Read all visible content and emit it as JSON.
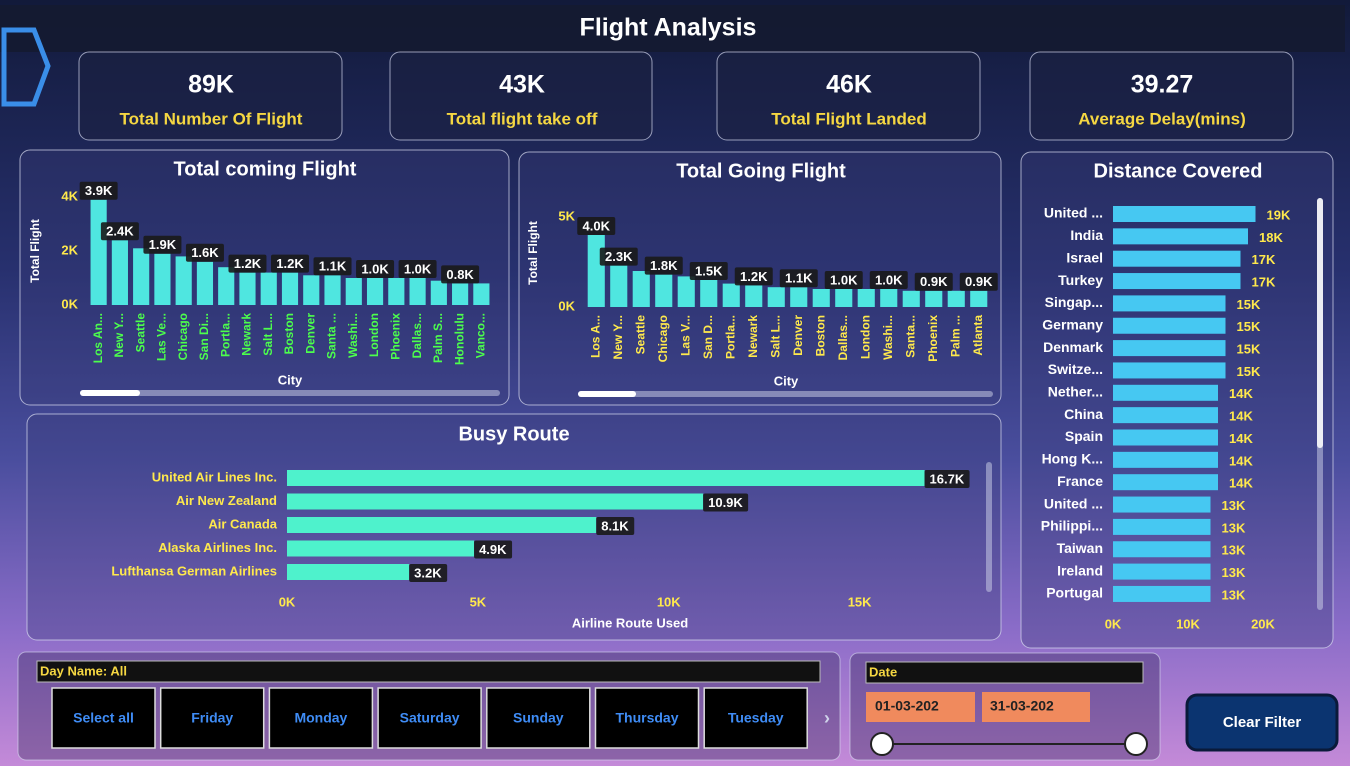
{
  "title": "Flight Analysis",
  "kpis": [
    {
      "value": "89K",
      "label": "Total Number Of Flight"
    },
    {
      "value": "43K",
      "label": "Total flight take off"
    },
    {
      "value": "46K",
      "label": "Total Flight Landed"
    },
    {
      "value": "39.27",
      "label": "Average Delay(mins)"
    }
  ],
  "chart_data": [
    {
      "type": "bar",
      "title": "Total coming Flight",
      "x_label": "City",
      "y_label": "Total Flight",
      "categories": [
        "Los An...",
        "New Y...",
        "Seattle",
        "Las Ve...",
        "Chicago",
        "San Di...",
        "Portla...",
        "Newark",
        "Salt L...",
        "Boston",
        "Denver",
        "Santa ...",
        "Washi...",
        "London",
        "Phoenix",
        "Dallas...",
        "Palm S...",
        "Honolulu",
        "Vanco..."
      ],
      "values": [
        3900,
        2400,
        2100,
        1900,
        1800,
        1600,
        1400,
        1200,
        1200,
        1200,
        1100,
        1100,
        1000,
        1000,
        1000,
        1000,
        900,
        800,
        800
      ],
      "value_labels": [
        "3.9K",
        "2.4K",
        null,
        "1.9K",
        null,
        "1.6K",
        null,
        "1.2K",
        null,
        "1.2K",
        null,
        "1.1K",
        null,
        "1.0K",
        null,
        "1.0K",
        null,
        "0.8K",
        null
      ],
      "color": "#4fe6e0",
      "category_color": "#4cff4c",
      "ylim": [
        0,
        4000
      ],
      "yticks": [
        {
          "value": 0,
          "label": "0K"
        },
        {
          "value": 2000,
          "label": "2K"
        },
        {
          "value": 4000,
          "label": "4K"
        }
      ]
    },
    {
      "type": "bar",
      "title": "Total Going Flight",
      "x_label": "City",
      "y_label": "Total Flight",
      "categories": [
        "Los A...",
        "New Y...",
        "Seattle",
        "Chicago",
        "Las V...",
        "San D...",
        "Portla...",
        "Newark",
        "Salt L...",
        "Denver",
        "Boston",
        "Dallas...",
        "London",
        "Washi...",
        "Santa...",
        "Phoenix",
        "Palm ...",
        "Atlanta"
      ],
      "values": [
        4000,
        2300,
        2000,
        1800,
        1700,
        1500,
        1300,
        1200,
        1100,
        1100,
        1000,
        1000,
        1000,
        1000,
        900,
        900,
        900,
        900
      ],
      "value_labels": [
        "4.0K",
        "2.3K",
        null,
        "1.8K",
        null,
        "1.5K",
        null,
        "1.2K",
        null,
        "1.1K",
        null,
        "1.0K",
        null,
        "1.0K",
        null,
        "0.9K",
        null,
        "0.9K"
      ],
      "color": "#4fe6e0",
      "category_color": "#ffe94c",
      "ylim": [
        0,
        5000
      ],
      "yticks": [
        {
          "value": 0,
          "label": "0K"
        },
        {
          "value": 5000,
          "label": "5K"
        }
      ]
    },
    {
      "type": "hbar",
      "title": "Distance Covered",
      "categories": [
        "United ...",
        "India",
        "Israel",
        "Turkey",
        "Singap...",
        "Germany",
        "Denmark",
        "Switze...",
        "Nether...",
        "China",
        "Spain",
        "Hong K...",
        "France",
        "United ...",
        "Philippi...",
        "Taiwan",
        "Ireland",
        "Portugal"
      ],
      "values": [
        19000,
        18000,
        17000,
        17000,
        15000,
        15000,
        15000,
        15000,
        14000,
        14000,
        14000,
        14000,
        14000,
        13000,
        13000,
        13000,
        13000,
        13000
      ],
      "value_labels": [
        "19K",
        "18K",
        "17K",
        "17K",
        "15K",
        "15K",
        "15K",
        "15K",
        "14K",
        "14K",
        "14K",
        "14K",
        "14K",
        "13K",
        "13K",
        "13K",
        "13K",
        "13K"
      ],
      "color": "#46c8f2",
      "category_color": "#ffffff",
      "xlim": [
        0,
        20000
      ],
      "xticks": [
        {
          "value": 0,
          "label": "0K"
        },
        {
          "value": 10000,
          "label": "10K"
        },
        {
          "value": 20000,
          "label": "20K"
        }
      ]
    },
    {
      "type": "hbar",
      "title": "Busy Route",
      "x_label": "Airline Route Used",
      "categories": [
        "United Air Lines Inc.",
        "Air New Zealand",
        "Air Canada",
        "Alaska Airlines Inc.",
        "Lufthansa German Airlines"
      ],
      "values": [
        16700,
        10900,
        8100,
        4900,
        3200
      ],
      "value_labels": [
        "16.7K",
        "10.9K",
        "8.1K",
        "4.9K",
        "3.2K"
      ],
      "color": "#4ef2cc",
      "category_color": "#ffe94c",
      "xlim": [
        0,
        17000
      ],
      "xticks": [
        {
          "value": 0,
          "label": "0K"
        },
        {
          "value": 5000,
          "label": "5K"
        },
        {
          "value": 10000,
          "label": "10K"
        },
        {
          "value": 15000,
          "label": "15K"
        }
      ]
    }
  ],
  "filters": {
    "day_dropdown": "Day Name: All",
    "days": [
      "Select all",
      "Friday",
      "Monday",
      "Saturday",
      "Sunday",
      "Thursday",
      "Tuesday"
    ],
    "date_label": "Date",
    "date_from": "01-03-202",
    "date_to": "31-03-202",
    "clear_button": "Clear Filter"
  }
}
